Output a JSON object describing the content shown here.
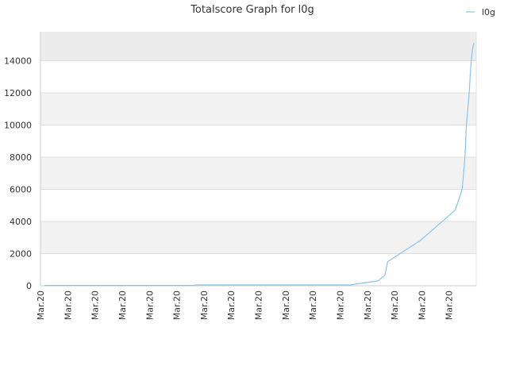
{
  "chart_data": {
    "type": "line",
    "title": "Totalscore Graph for l0g",
    "xlabel": "",
    "ylabel": "",
    "ylim": [
      0,
      15800
    ],
    "y_ticks": [
      0,
      2000,
      4000,
      6000,
      8000,
      10000,
      12000,
      14000
    ],
    "y_tick_labels": [
      "0",
      "2000",
      "4000",
      "6000",
      "8000",
      "10000",
      "12000",
      "14000"
    ],
    "x_tick_labels": [
      "Mar.20",
      "Mar.20",
      "Mar.20",
      "Mar.20",
      "Mar.20",
      "Mar.20",
      "Mar.20",
      "Mar.20",
      "Mar.20",
      "Mar.20",
      "Mar.20",
      "Mar.20",
      "Mar.20",
      "Mar.20",
      "Mar.20",
      "Mar.20"
    ],
    "grid": true,
    "legend_position": "top-right",
    "series": [
      {
        "name": "l0g",
        "color": "#88c4f0",
        "x": [
          0.3,
          11,
          11.01,
          22,
          24,
          24.5,
          24.7,
          27,
          29.5,
          30,
          30.2,
          30.3,
          30.5,
          30.6,
          30.7,
          30.8,
          30.85
        ],
        "values": [
          20,
          20,
          50,
          50,
          300,
          650,
          1500,
          2800,
          4700,
          6000,
          8000,
          10000,
          12000,
          13500,
          14500,
          15000,
          15100
        ]
      }
    ]
  }
}
